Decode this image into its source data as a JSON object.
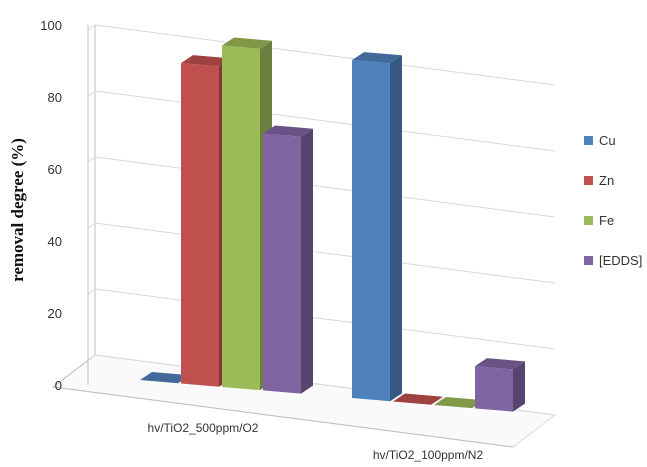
{
  "chart_data": {
    "type": "bar",
    "style": "3d-clustered-column",
    "categories": [
      "hv/TiO2_500ppm/O2",
      "hv/TiO2_100ppm/N2"
    ],
    "series": [
      {
        "name": "Cu",
        "values": [
          0,
          96
        ],
        "color": "#4F81BD"
      },
      {
        "name": "Zn",
        "values": [
          91,
          0
        ],
        "color": "#C0504D"
      },
      {
        "name": "Fe",
        "values": [
          97,
          0
        ],
        "color": "#9BBB59"
      },
      {
        "name": "[EDDS]",
        "values": [
          73,
          12
        ],
        "color": "#8064A2"
      }
    ],
    "ylabel": "removal degree (%)",
    "ylim": [
      0,
      100
    ],
    "yticks": [
      0,
      20,
      40,
      60,
      80,
      100
    ],
    "grid": true,
    "legend": "right"
  }
}
